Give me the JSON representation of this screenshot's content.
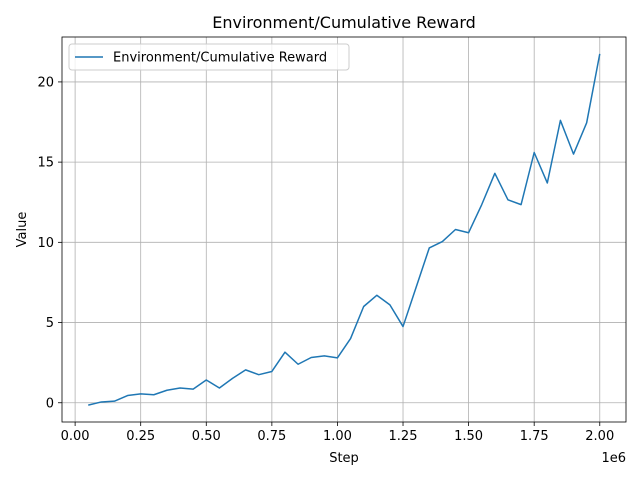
{
  "chart_data": {
    "type": "line",
    "title": "Environment/Cumulative Reward",
    "xlabel": "Step",
    "ylabel": "Value",
    "x_offset_label": "1e6",
    "xlim": [
      -0.05,
      2.1
    ],
    "ylim": [
      -1.2,
      22.8
    ],
    "x_ticks": [
      0.0,
      0.25,
      0.5,
      0.75,
      1.0,
      1.25,
      1.5,
      1.75,
      2.0
    ],
    "x_tick_labels": [
      "0.00",
      "0.25",
      "0.50",
      "0.75",
      "1.00",
      "1.25",
      "1.50",
      "1.75",
      "2.00"
    ],
    "y_ticks": [
      0,
      5,
      10,
      15,
      20
    ],
    "y_tick_labels": [
      "0",
      "5",
      "10",
      "15",
      "20"
    ],
    "grid": true,
    "legend_position": "top-left",
    "series": [
      {
        "name": "Environment/Cumulative Reward",
        "color": "#1f77b4",
        "x": [
          0.05,
          0.1,
          0.15,
          0.2,
          0.25,
          0.3,
          0.35,
          0.4,
          0.45,
          0.5,
          0.55,
          0.6,
          0.65,
          0.7,
          0.75,
          0.8,
          0.85,
          0.9,
          0.95,
          1.0,
          1.05,
          1.1,
          1.15,
          1.2,
          1.25,
          1.3,
          1.35,
          1.4,
          1.45,
          1.5,
          1.55,
          1.6,
          1.65,
          1.7,
          1.75,
          1.8,
          1.85,
          1.9,
          1.95,
          2.0
        ],
        "y": [
          -0.15,
          0.05,
          0.1,
          0.45,
          0.55,
          0.5,
          0.78,
          0.92,
          0.85,
          1.42,
          0.92,
          1.52,
          2.05,
          1.75,
          1.95,
          3.15,
          2.4,
          2.82,
          2.92,
          2.8,
          4.0,
          6.0,
          6.7,
          6.1,
          4.75,
          7.2,
          9.65,
          10.05,
          10.8,
          10.6,
          12.35,
          14.3,
          12.65,
          12.35,
          15.6,
          13.7,
          17.6,
          15.5,
          17.45,
          21.75
        ]
      }
    ]
  }
}
